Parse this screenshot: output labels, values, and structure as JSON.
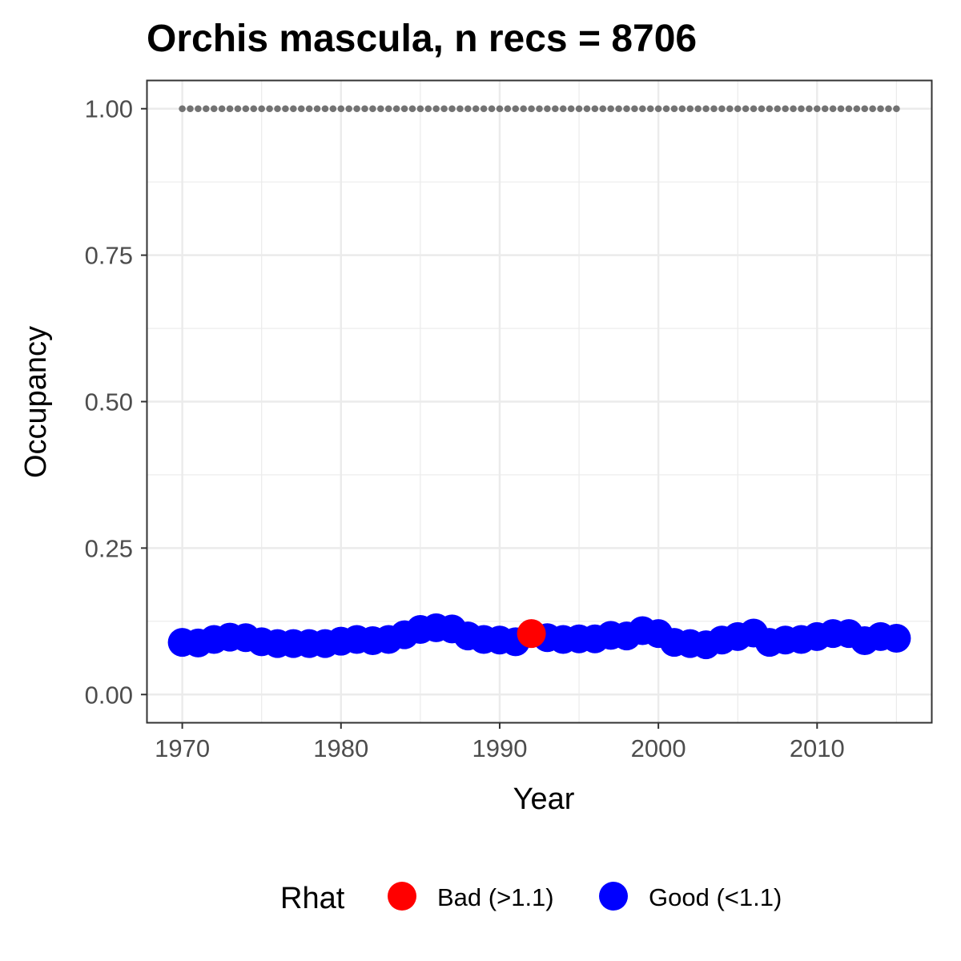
{
  "chart_data": {
    "type": "scatter",
    "title": "Orchis mascula, n recs = 8706",
    "xlabel": "Year",
    "ylabel": "Occupancy",
    "xlim": [
      1967.8,
      1917.2
    ],
    "ylim": [
      -0.0475,
      1.0475
    ],
    "x_ticks": [
      1970,
      1980,
      1990,
      2000,
      2010
    ],
    "x_tick_labels": [
      "1970",
      "1980",
      "1990",
      "2000",
      "2010"
    ],
    "y_ticks": [
      0.0,
      0.25,
      0.5,
      0.75,
      1.0
    ],
    "y_tick_labels": [
      "0.00",
      "0.25",
      "0.50",
      "0.75",
      "1.00"
    ],
    "grid": true,
    "legend": {
      "title": "Rhat",
      "position": "bottom",
      "entries": [
        {
          "label": "Bad (>1.1)",
          "color": "#ff0000"
        },
        {
          "label": "Good (<1.1)",
          "color": "#0000ff"
        }
      ]
    },
    "reference_series": {
      "style": "dotted",
      "color": "#737373",
      "x_start": 1970,
      "x_end": 2015,
      "y": 1.0
    },
    "points": [
      {
        "x": 1970,
        "y": 0.089,
        "rhat": "Good (<1.1)"
      },
      {
        "x": 1971,
        "y": 0.088,
        "rhat": "Good (<1.1)"
      },
      {
        "x": 1972,
        "y": 0.094,
        "rhat": "Good (<1.1)"
      },
      {
        "x": 1973,
        "y": 0.098,
        "rhat": "Good (<1.1)"
      },
      {
        "x": 1974,
        "y": 0.097,
        "rhat": "Good (<1.1)"
      },
      {
        "x": 1975,
        "y": 0.09,
        "rhat": "Good (<1.1)"
      },
      {
        "x": 1976,
        "y": 0.087,
        "rhat": "Good (<1.1)"
      },
      {
        "x": 1977,
        "y": 0.087,
        "rhat": "Good (<1.1)"
      },
      {
        "x": 1978,
        "y": 0.087,
        "rhat": "Good (<1.1)"
      },
      {
        "x": 1979,
        "y": 0.087,
        "rhat": "Good (<1.1)"
      },
      {
        "x": 1980,
        "y": 0.091,
        "rhat": "Good (<1.1)"
      },
      {
        "x": 1981,
        "y": 0.094,
        "rhat": "Good (<1.1)"
      },
      {
        "x": 1982,
        "y": 0.092,
        "rhat": "Good (<1.1)"
      },
      {
        "x": 1983,
        "y": 0.094,
        "rhat": "Good (<1.1)"
      },
      {
        "x": 1984,
        "y": 0.102,
        "rhat": "Good (<1.1)"
      },
      {
        "x": 1985,
        "y": 0.111,
        "rhat": "Good (<1.1)"
      },
      {
        "x": 1986,
        "y": 0.114,
        "rhat": "Good (<1.1)"
      },
      {
        "x": 1987,
        "y": 0.112,
        "rhat": "Good (<1.1)"
      },
      {
        "x": 1988,
        "y": 0.1,
        "rhat": "Good (<1.1)"
      },
      {
        "x": 1989,
        "y": 0.094,
        "rhat": "Good (<1.1)"
      },
      {
        "x": 1990,
        "y": 0.093,
        "rhat": "Good (<1.1)"
      },
      {
        "x": 1991,
        "y": 0.09,
        "rhat": "Good (<1.1)"
      },
      {
        "x": 1992,
        "y": 0.104,
        "rhat": "Bad (>1.1)"
      },
      {
        "x": 1993,
        "y": 0.097,
        "rhat": "Good (<1.1)"
      },
      {
        "x": 1994,
        "y": 0.094,
        "rhat": "Good (<1.1)"
      },
      {
        "x": 1995,
        "y": 0.095,
        "rhat": "Good (<1.1)"
      },
      {
        "x": 1996,
        "y": 0.095,
        "rhat": "Good (<1.1)"
      },
      {
        "x": 1997,
        "y": 0.101,
        "rhat": "Good (<1.1)"
      },
      {
        "x": 1998,
        "y": 0.1,
        "rhat": "Good (<1.1)"
      },
      {
        "x": 1999,
        "y": 0.109,
        "rhat": "Good (<1.1)"
      },
      {
        "x": 2000,
        "y": 0.104,
        "rhat": "Good (<1.1)"
      },
      {
        "x": 2001,
        "y": 0.089,
        "rhat": "Good (<1.1)"
      },
      {
        "x": 2002,
        "y": 0.087,
        "rhat": "Good (<1.1)"
      },
      {
        "x": 2003,
        "y": 0.085,
        "rhat": "Good (<1.1)"
      },
      {
        "x": 2004,
        "y": 0.093,
        "rhat": "Good (<1.1)"
      },
      {
        "x": 2005,
        "y": 0.099,
        "rhat": "Good (<1.1)"
      },
      {
        "x": 2006,
        "y": 0.105,
        "rhat": "Good (<1.1)"
      },
      {
        "x": 2007,
        "y": 0.089,
        "rhat": "Good (<1.1)"
      },
      {
        "x": 2008,
        "y": 0.093,
        "rhat": "Good (<1.1)"
      },
      {
        "x": 2009,
        "y": 0.094,
        "rhat": "Good (<1.1)"
      },
      {
        "x": 2010,
        "y": 0.099,
        "rhat": "Good (<1.1)"
      },
      {
        "x": 2011,
        "y": 0.104,
        "rhat": "Good (<1.1)"
      },
      {
        "x": 2012,
        "y": 0.104,
        "rhat": "Good (<1.1)"
      },
      {
        "x": 2013,
        "y": 0.092,
        "rhat": "Good (<1.1)"
      },
      {
        "x": 2014,
        "y": 0.099,
        "rhat": "Good (<1.1)"
      },
      {
        "x": 2015,
        "y": 0.096,
        "rhat": "Good (<1.1)"
      }
    ]
  }
}
